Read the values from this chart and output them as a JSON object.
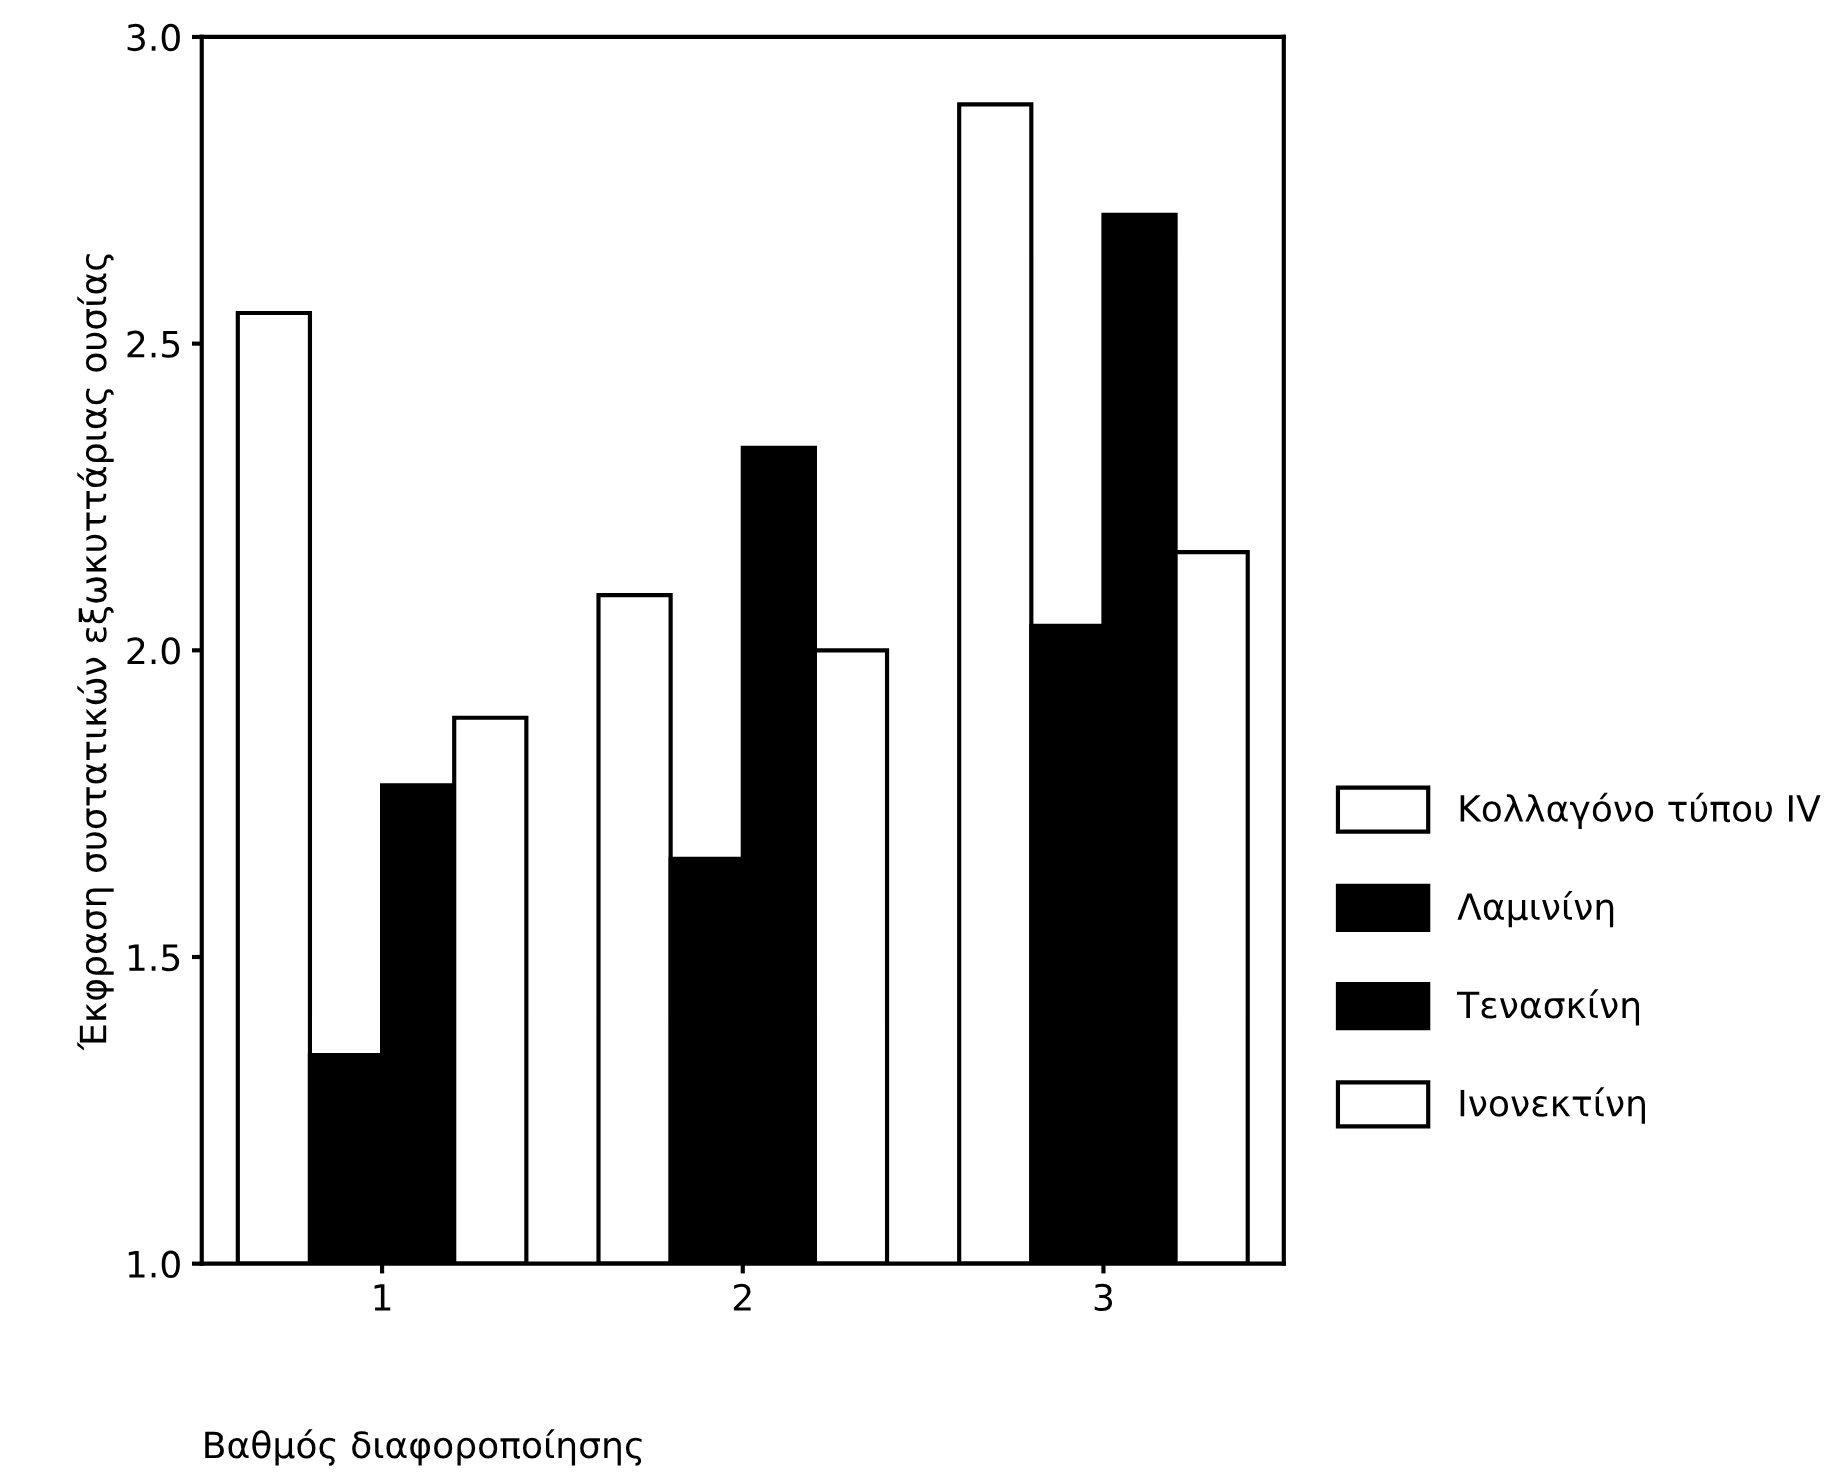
{
  "chart_data": {
    "type": "bar",
    "xlabel": "Βαθμός διαφοροποίησης",
    "ylabel": "Έκφραση συστατικών εξωκυττάριας ουσίας",
    "categories": [
      "1",
      "2",
      "3"
    ],
    "series": [
      {
        "name": "Κολλαγόνο τύπου IV",
        "color": "#ffffff",
        "values": [
          2.55,
          2.09,
          2.89
        ]
      },
      {
        "name": "Λαμινίνη",
        "color": "#000000",
        "values": [
          1.34,
          1.66,
          2.04
        ]
      },
      {
        "name": "Τενασκίνη",
        "color": "#000000",
        "values": [
          1.78,
          2.33,
          2.71
        ]
      },
      {
        "name": "Ινονεκτίνη",
        "color": "#ffffff",
        "values": [
          1.89,
          2.0,
          2.16
        ]
      }
    ],
    "ylim": [
      1.0,
      3.0
    ],
    "yticks": [
      {
        "value": 1.0,
        "label": "1.0"
      },
      {
        "value": 1.5,
        "label": "1.5"
      },
      {
        "value": 2.0,
        "label": "2.0"
      },
      {
        "value": 2.5,
        "label": "2.5"
      },
      {
        "value": 3.0,
        "label": "3.0"
      }
    ],
    "grid": false,
    "legend": "right"
  }
}
